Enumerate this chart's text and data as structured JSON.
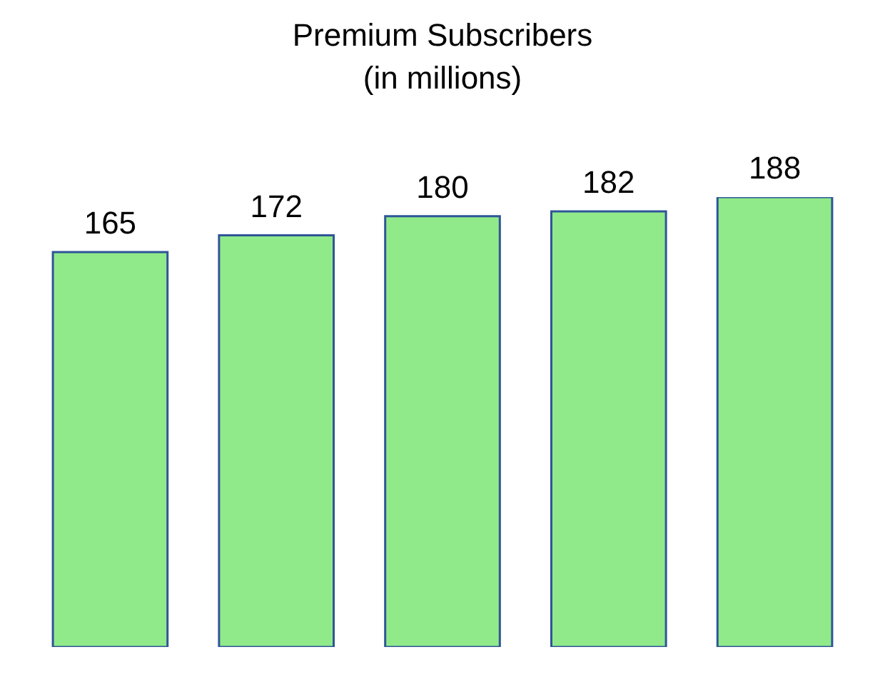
{
  "chart_data": {
    "type": "bar",
    "title": "Premium Subscribers",
    "subtitle": "(in millions)",
    "categories": [
      null,
      null,
      null,
      null,
      null
    ],
    "values": [
      165,
      172,
      180,
      182,
      188
    ],
    "color": "#90ea8a",
    "data_labels": true,
    "tick_labels": false
  }
}
